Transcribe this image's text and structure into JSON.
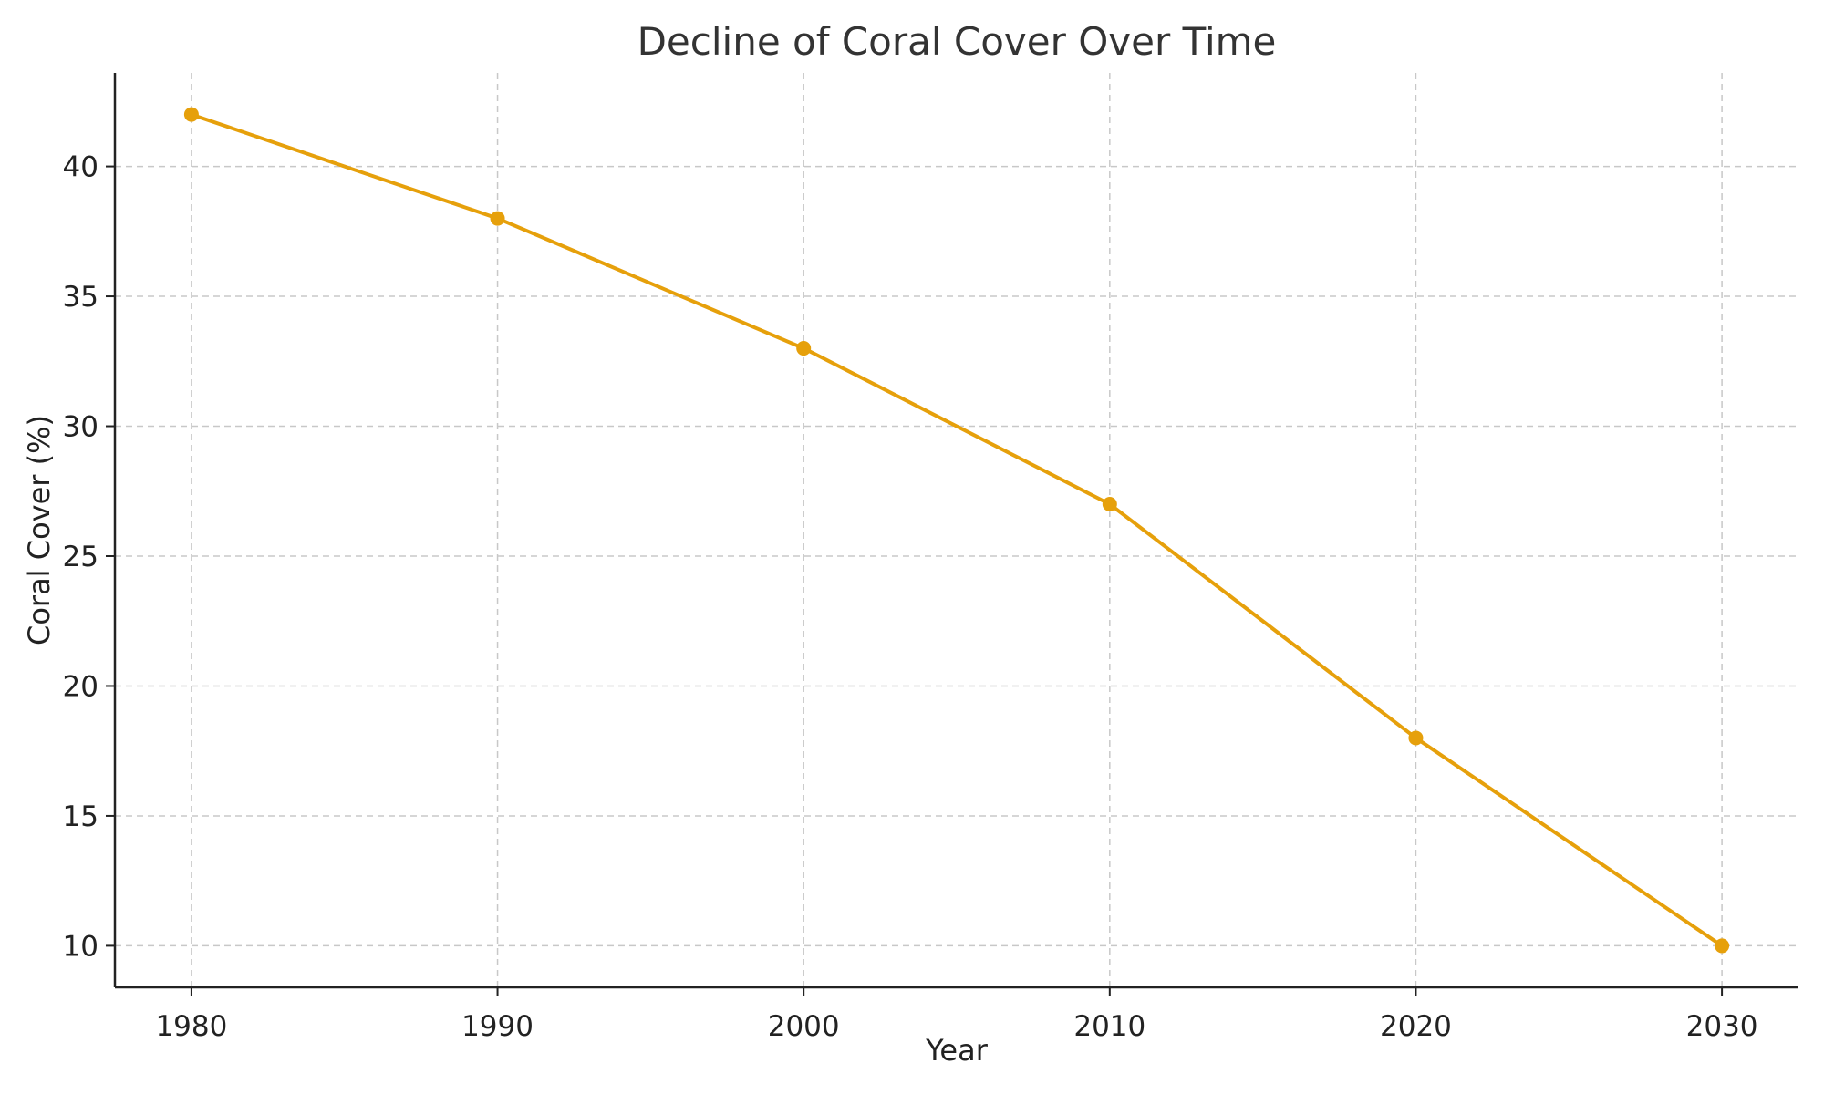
{
  "chart_data": {
    "type": "line",
    "title": "Decline of Coral Cover Over Time",
    "xlabel": "Year",
    "ylabel": "Coral Cover (%)",
    "x": [
      1980,
      1990,
      2000,
      2010,
      2020,
      2030
    ],
    "series": [
      {
        "values": [
          42,
          38,
          33,
          27,
          18,
          10
        ],
        "color": "#e6a00b",
        "marker": "circle"
      }
    ],
    "xlim": [
      1977.5,
      2032.5
    ],
    "ylim": [
      8.4,
      43.6
    ],
    "xticks": [
      "1980",
      "1990",
      "2000",
      "2010",
      "2020",
      "2030"
    ],
    "yticks": [
      "10",
      "15",
      "20",
      "25",
      "30",
      "35",
      "40"
    ],
    "grid": true,
    "legend": "none"
  }
}
